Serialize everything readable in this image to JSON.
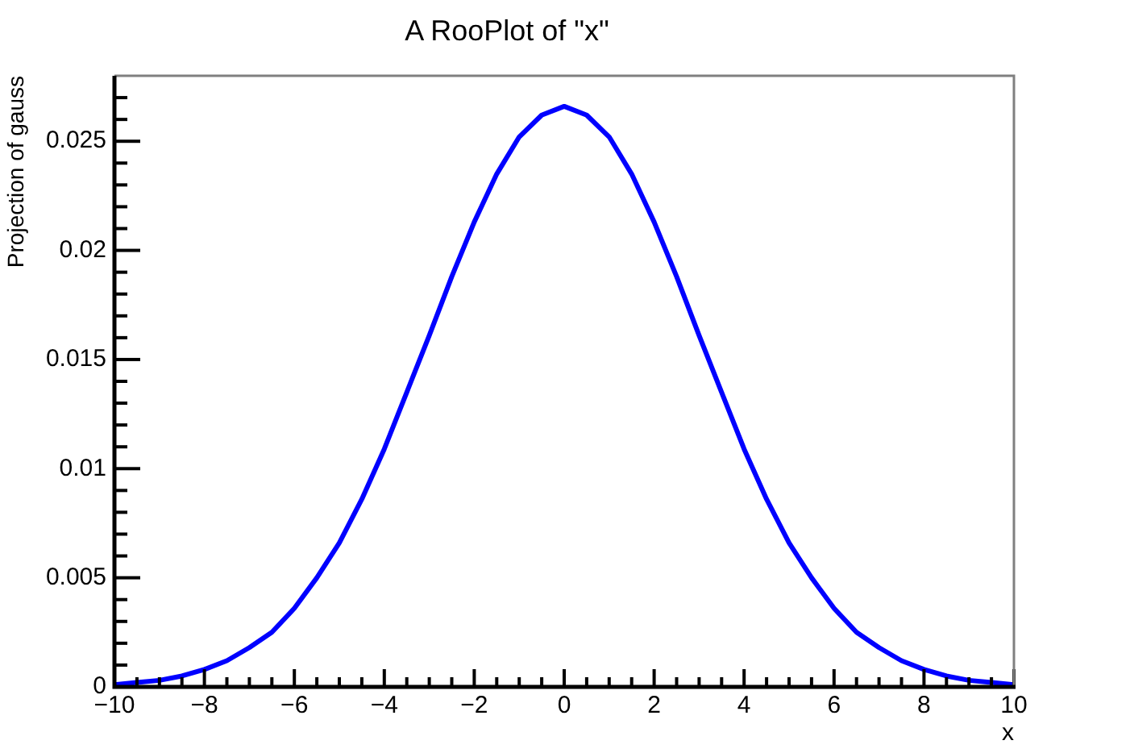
{
  "chart_data": {
    "type": "line",
    "title": "A RooPlot of \"x\"",
    "xlabel": "x",
    "ylabel": "Projection of gauss",
    "x": [
      -10,
      -9.5,
      -9,
      -8.5,
      -8,
      -7.5,
      -7,
      -6.5,
      -6,
      -5.5,
      -5,
      -4.5,
      -4,
      -3.5,
      -3,
      -2.5,
      -2,
      -1.5,
      -1,
      -0.5,
      0,
      0.5,
      1,
      1.5,
      2,
      2.5,
      3,
      3.5,
      4,
      4.5,
      5,
      5.5,
      6,
      6.5,
      7,
      7.5,
      8,
      8.5,
      9,
      9.5,
      10
    ],
    "series": [
      {
        "color": "#0000ff",
        "values": [
          0.0001,
          0.0002,
          0.0003,
          0.0005,
          0.0008,
          0.0012,
          0.0018,
          0.0025,
          0.0036,
          0.005,
          0.0066,
          0.0086,
          0.0109,
          0.0135,
          0.0161,
          0.0188,
          0.0213,
          0.0235,
          0.0252,
          0.0262,
          0.0266,
          0.0262,
          0.0252,
          0.0235,
          0.0213,
          0.0188,
          0.0161,
          0.0135,
          0.0109,
          0.0086,
          0.0066,
          0.005,
          0.0036,
          0.0025,
          0.0018,
          0.0012,
          0.0008,
          0.0005,
          0.0003,
          0.0002,
          0.0001
        ]
      }
    ],
    "xlim": [
      -10,
      10
    ],
    "ylim": [
      0,
      0.028
    ],
    "xticks": [
      -10,
      {
        "value": -9.5,
        "label": null
      },
      {
        "value": -9,
        "label": null
      },
      {
        "value": -8.5,
        "label": null
      },
      -8,
      {
        "value": -7.5,
        "label": null
      },
      {
        "value": -7,
        "label": null
      },
      {
        "value": -6.5,
        "label": null
      },
      -6,
      {
        "value": -5.5,
        "label": null
      },
      {
        "value": -5,
        "label": null
      },
      {
        "value": -4.5,
        "label": null
      },
      -4,
      {
        "value": -3.5,
        "label": null
      },
      {
        "value": -3,
        "label": null
      },
      {
        "value": -2.5,
        "label": null
      },
      -2,
      {
        "value": -1.5,
        "label": null
      },
      {
        "value": -1,
        "label": null
      },
      {
        "value": -0.5,
        "label": null
      },
      0,
      {
        "value": 0.5,
        "label": null
      },
      {
        "value": 1,
        "label": null
      },
      {
        "value": 1.5,
        "label": null
      },
      2,
      {
        "value": 2.5,
        "label": null
      },
      {
        "value": 3,
        "label": null
      },
      {
        "value": 3.5,
        "label": null
      },
      4,
      {
        "value": 4.5,
        "label": null
      },
      {
        "value": 5,
        "label": null
      },
      {
        "value": 5.5,
        "label": null
      },
      6,
      {
        "value": 6.5,
        "label": null
      },
      {
        "value": 7,
        "label": null
      },
      {
        "value": 7.5,
        "label": null
      },
      8,
      {
        "value": 8.5,
        "label": null
      },
      {
        "value": 9,
        "label": null
      },
      {
        "value": 9.5,
        "label": null
      },
      10
    ],
    "yticks": [
      0,
      {
        "value": 0.001,
        "label": null
      },
      {
        "value": 0.002,
        "label": null
      },
      {
        "value": 0.003,
        "label": null
      },
      {
        "value": 0.004,
        "label": null
      },
      0.005,
      {
        "value": 0.006,
        "label": null
      },
      {
        "value": 0.007,
        "label": null
      },
      {
        "value": 0.008,
        "label": null
      },
      {
        "value": 0.009,
        "label": null
      },
      0.01,
      {
        "value": 0.011,
        "label": null
      },
      {
        "value": 0.012,
        "label": null
      },
      {
        "value": 0.013,
        "label": null
      },
      {
        "value": 0.014,
        "label": null
      },
      0.015,
      {
        "value": 0.016,
        "label": null
      },
      {
        "value": 0.017,
        "label": null
      },
      {
        "value": 0.018,
        "label": null
      },
      {
        "value": 0.019,
        "label": null
      },
      0.02,
      {
        "value": 0.021,
        "label": null
      },
      {
        "value": 0.022,
        "label": null
      },
      {
        "value": 0.023,
        "label": null
      },
      {
        "value": 0.024,
        "label": null
      },
      0.025,
      {
        "value": 0.026,
        "label": null
      },
      {
        "value": 0.027,
        "label": null
      }
    ],
    "grid": false,
    "legend": false,
    "marker": "none",
    "line_style": "solid"
  }
}
